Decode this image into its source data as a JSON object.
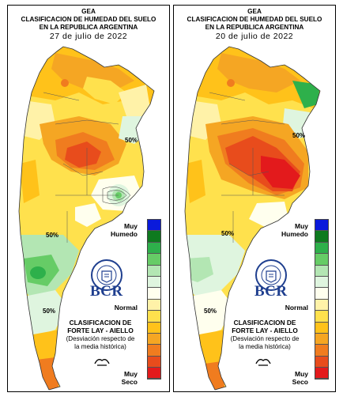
{
  "header": {
    "org": "GEA",
    "title_line1": "CLASIFICACION DE HUMEDAD DEL SUELO",
    "title_line2": "EN LA REPUBLICA ARGENTINA"
  },
  "maps": [
    {
      "date": "27 de julio de 2022"
    },
    {
      "date": "20 de julio de 2022"
    }
  ],
  "legend": {
    "top_label_1": "Muy",
    "top_label_2": "Humedo",
    "mid_label": "Normal",
    "bottom_label_1": "Muy",
    "bottom_label_2": "Seco",
    "colors": [
      "#0a1adb",
      "#0e7a1f",
      "#2eb04b",
      "#66cc66",
      "#b3e6b3",
      "#dff5df",
      "#ffffee",
      "#fff2a8",
      "#ffe14d",
      "#ffc21a",
      "#f5a623",
      "#f07c1f",
      "#e84c1c",
      "#e31a1c"
    ]
  },
  "brand": {
    "logo_text": "BCR",
    "seal_text": "BOLSA DE COMERCIO DE ROSARIO",
    "class_title_1": "CLASIFICACION DE",
    "class_title_2": "FORTE LAY - AIELLO",
    "class_sub_1": "(Desviación respecto de",
    "class_sub_2": "la media histórica)"
  },
  "isolines": [
    "50%",
    "50%",
    "50%"
  ]
}
